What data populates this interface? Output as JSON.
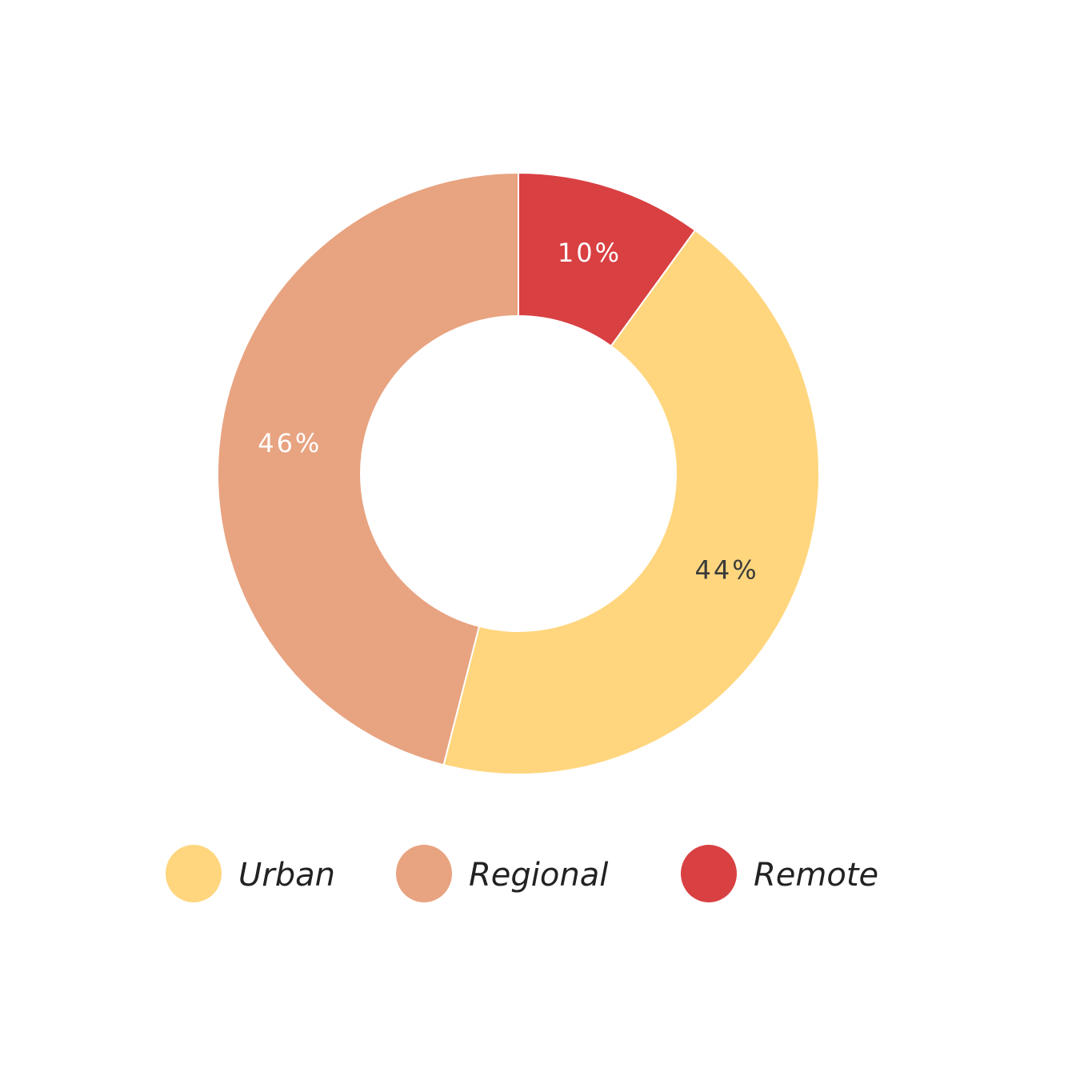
{
  "chart_data": {
    "type": "donut",
    "categories": [
      "Urban",
      "Regional",
      "Remote"
    ],
    "values": [
      44,
      46,
      10
    ],
    "value_labels": [
      "44%",
      "46%",
      "10%"
    ],
    "colors": [
      "#FFD67E",
      "#E8A380",
      "#D94042"
    ]
  }
}
